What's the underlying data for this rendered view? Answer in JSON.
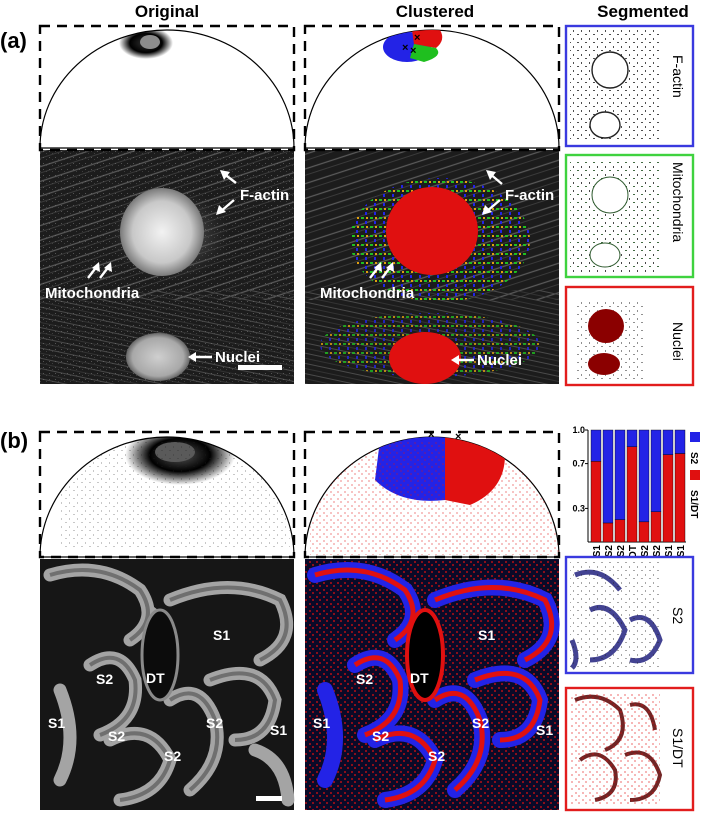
{
  "headers": {
    "original": "Original",
    "clustered": "Clustered",
    "segmented": "Segmented"
  },
  "panels": {
    "a": {
      "label": "(a)",
      "annotations": {
        "factin": "F-actin",
        "mitochondria": "Mitochondria",
        "nuclei": "Nuclei"
      },
      "segmented_labels": [
        "F-actin",
        "Mitochondria",
        "Nuclei"
      ]
    },
    "b": {
      "label": "(b)",
      "regions": [
        "S1",
        "S2",
        "DT",
        "S1",
        "S2",
        "S2",
        "S2",
        "S1"
      ],
      "segmented_labels": [
        "S2",
        "S1/DT"
      ]
    }
  },
  "colors": {
    "blue": "#2323e6",
    "green": "#1fbf1f",
    "red": "#e01010",
    "dark_red": "#8b0000",
    "frame_blue": "#3a3adf",
    "frame_green": "#3fd23f",
    "frame_red": "#e21d1d"
  },
  "chart_data": {
    "type": "bar",
    "stacked": true,
    "categories": [
      "S1",
      "S2",
      "S2",
      "DT",
      "S2",
      "S2",
      "S1",
      "S1"
    ],
    "series": [
      {
        "name": "S1/DT",
        "color": "#e01010",
        "values": [
          0.72,
          0.17,
          0.2,
          0.85,
          0.18,
          0.27,
          0.78,
          0.79
        ]
      },
      {
        "name": "S2",
        "color": "#2323e6",
        "values": [
          0.28,
          0.83,
          0.8,
          0.15,
          0.82,
          0.73,
          0.22,
          0.21
        ]
      }
    ],
    "yticks": [
      "0.3",
      "0.7",
      "1.0"
    ],
    "ylim": [
      0,
      1
    ],
    "legend": [
      "S2",
      "S1/DT"
    ]
  }
}
